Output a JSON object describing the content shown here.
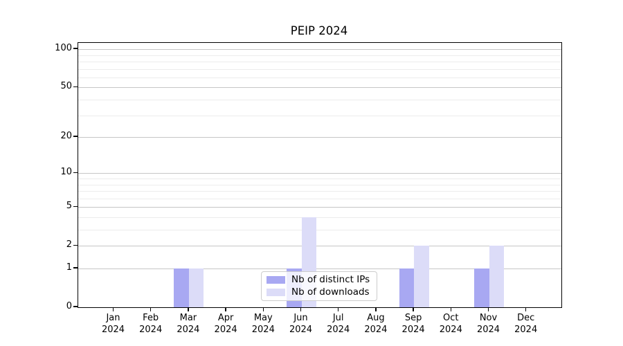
{
  "title": "PEIP 2024",
  "chart_data": {
    "type": "bar",
    "title": "PEIP 2024",
    "xlabel": "",
    "ylabel": "",
    "y_scale": "log1p",
    "ylim": [
      0,
      113
    ],
    "grid": "on",
    "legend_position": "lower center",
    "categories": [
      {
        "month": "Jan",
        "year": "2024"
      },
      {
        "month": "Feb",
        "year": "2024"
      },
      {
        "month": "Mar",
        "year": "2024"
      },
      {
        "month": "Apr",
        "year": "2024"
      },
      {
        "month": "May",
        "year": "2024"
      },
      {
        "month": "Jun",
        "year": "2024"
      },
      {
        "month": "Jul",
        "year": "2024"
      },
      {
        "month": "Aug",
        "year": "2024"
      },
      {
        "month": "Sep",
        "year": "2024"
      },
      {
        "month": "Oct",
        "year": "2024"
      },
      {
        "month": "Nov",
        "year": "2024"
      },
      {
        "month": "Dec",
        "year": "2024"
      }
    ],
    "series": [
      {
        "name": "Nb of distinct IPs",
        "color": "#a8a8f2",
        "values": [
          0,
          0,
          1,
          0,
          0,
          1,
          0,
          0,
          1,
          0,
          1,
          0
        ]
      },
      {
        "name": "Nb of downloads",
        "color": "#dcdcf8",
        "values": [
          0,
          0,
          1,
          0,
          0,
          4,
          0,
          0,
          2,
          0,
          2,
          0
        ]
      }
    ],
    "y_major_ticks": [
      0,
      1,
      2,
      5,
      10,
      20,
      50,
      100
    ],
    "y_minor_gridlines": [
      3,
      4,
      6,
      7,
      8,
      9,
      30,
      40,
      60,
      70,
      80,
      90
    ],
    "colors": {
      "major_grid": "#c6c6c6",
      "minor_grid": "#ececec",
      "axis": "#000000",
      "legend_border": "#cccccc"
    }
  }
}
